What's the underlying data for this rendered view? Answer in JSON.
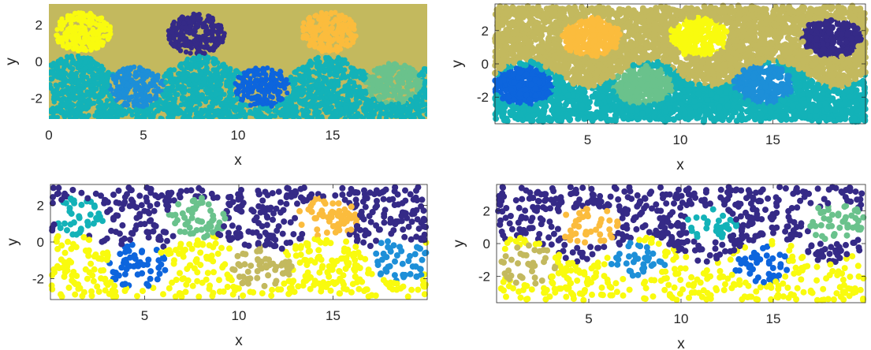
{
  "palette": {
    "navy": "#352a87",
    "yellow": "#f9fb0e",
    "gold": "#fbbc3d",
    "olive": "#c3b95e",
    "teal": "#13b2b8",
    "green": "#6ac28c",
    "sky": "#1d8fd8",
    "blue": "#0d65dd",
    "axis": "#262626"
  },
  "chart_data": [
    {
      "type": "scatter",
      "id": "top-left",
      "title": "",
      "xlabel": "x",
      "ylabel": "y",
      "xlim": [
        0,
        20
      ],
      "ylim": [
        -3.14,
        3.14
      ],
      "xticks": [
        0,
        5,
        10,
        15
      ],
      "xtick_labels": [
        "0",
        "5",
        "10",
        "15"
      ],
      "yticks": [
        2,
        0,
        -2
      ],
      "ytick_labels": [
        "2",
        "0",
        "-2"
      ],
      "box": false,
      "style": "dense-field",
      "regions": [
        {
          "kind": "background",
          "color": "#c3b95e"
        },
        {
          "kind": "band",
          "color": "#13b2b8",
          "base": -0.4,
          "amp": 0.75,
          "phase": 0.2
        },
        {
          "kind": "blob",
          "color": "#f9fb0e",
          "cx": 1.8,
          "cy": 1.6,
          "r": 1.5
        },
        {
          "kind": "blob",
          "color": "#352a87",
          "cx": 7.8,
          "cy": 1.5,
          "r": 1.5
        },
        {
          "kind": "blob",
          "color": "#fbbc3d",
          "cx": 14.8,
          "cy": 1.6,
          "r": 1.5
        },
        {
          "kind": "blob",
          "color": "#1d8fd8",
          "cx": 4.6,
          "cy": -1.4,
          "r": 1.5
        },
        {
          "kind": "blob",
          "color": "#0d65dd",
          "cx": 11.3,
          "cy": -1.4,
          "r": 1.5
        },
        {
          "kind": "blob",
          "color": "#6ac28c",
          "cx": 18.2,
          "cy": -1.2,
          "r": 1.5
        }
      ]
    },
    {
      "type": "scatter",
      "id": "top-right",
      "title": "",
      "xlabel": "x",
      "ylabel": "y",
      "xlim": [
        0,
        20
      ],
      "ylim": [
        -3.6,
        3.6
      ],
      "xticks": [
        5,
        10,
        15
      ],
      "xtick_labels": [
        "5",
        "10",
        "15"
      ],
      "yticks": [
        2,
        0,
        -2
      ],
      "ytick_labels": [
        "2",
        "0",
        "-2"
      ],
      "box": true,
      "style": "dense-points",
      "regions": [
        {
          "kind": "background",
          "color": "#c3b95e"
        },
        {
          "kind": "band",
          "color": "#13b2b8",
          "base": -0.6,
          "amp": 0.8,
          "phase": 0.0
        },
        {
          "kind": "blob",
          "color": "#fbbc3d",
          "cx": 5.2,
          "cy": 1.6,
          "r": 1.6
        },
        {
          "kind": "blob",
          "color": "#f9fb0e",
          "cx": 11.0,
          "cy": 1.6,
          "r": 1.6
        },
        {
          "kind": "blob",
          "color": "#352a87",
          "cx": 18.2,
          "cy": 1.6,
          "r": 1.6
        },
        {
          "kind": "blob",
          "color": "#0d65dd",
          "cx": 1.5,
          "cy": -1.3,
          "r": 1.6
        },
        {
          "kind": "blob",
          "color": "#6ac28c",
          "cx": 8.0,
          "cy": -1.3,
          "r": 1.6
        },
        {
          "kind": "blob",
          "color": "#1d8fd8",
          "cx": 14.5,
          "cy": -1.2,
          "r": 1.6
        }
      ]
    },
    {
      "type": "scatter",
      "id": "bottom-left",
      "title": "",
      "xlabel": "x",
      "ylabel": "y",
      "xlim": [
        0,
        20
      ],
      "ylim": [
        -3.14,
        3.14
      ],
      "xticks": [
        5,
        10,
        15
      ],
      "xtick_labels": [
        "5",
        "10",
        "15"
      ],
      "yticks": [
        2,
        0,
        -2
      ],
      "ytick_labels": [
        "2",
        "0",
        "-2"
      ],
      "box": true,
      "style": "sparse-points",
      "regions": [
        {
          "kind": "background",
          "color": "#352a87"
        },
        {
          "kind": "band",
          "color": "#f9fb0e",
          "base": -0.2,
          "amp": 0.8,
          "phase": 0.5
        },
        {
          "kind": "blob",
          "color": "#13b2b8",
          "cx": 1.5,
          "cy": 1.4,
          "r": 1.4
        },
        {
          "kind": "blob",
          "color": "#6ac28c",
          "cx": 7.7,
          "cy": 1.3,
          "r": 1.6
        },
        {
          "kind": "blob",
          "color": "#fbbc3d",
          "cx": 14.7,
          "cy": 1.3,
          "r": 1.6
        },
        {
          "kind": "blob",
          "color": "#0d65dd",
          "cx": 4.6,
          "cy": -1.3,
          "r": 1.6
        },
        {
          "kind": "blob",
          "color": "#c3b95e",
          "cx": 11.2,
          "cy": -1.4,
          "r": 1.6
        },
        {
          "kind": "blob",
          "color": "#1d8fd8",
          "cx": 18.5,
          "cy": -1.0,
          "r": 1.6
        }
      ]
    },
    {
      "type": "scatter",
      "id": "bottom-right",
      "title": "",
      "xlabel": "x",
      "ylabel": "y",
      "xlim": [
        0,
        20
      ],
      "ylim": [
        -3.6,
        3.6
      ],
      "xticks": [
        5,
        10,
        15
      ],
      "xtick_labels": [
        "5",
        "10",
        "15"
      ],
      "yticks": [
        2,
        0,
        -2
      ],
      "ytick_labels": [
        "2",
        "0",
        "-2"
      ],
      "box": true,
      "style": "sparse-points",
      "regions": [
        {
          "kind": "background",
          "color": "#352a87"
        },
        {
          "kind": "band",
          "color": "#f9fb0e",
          "base": -0.4,
          "amp": 0.8,
          "phase": 0.3
        },
        {
          "kind": "blob",
          "color": "#fbbc3d",
          "cx": 5.0,
          "cy": 1.1,
          "r": 1.6
        },
        {
          "kind": "blob",
          "color": "#13b2b8",
          "cx": 11.6,
          "cy": 1.1,
          "r": 1.4
        },
        {
          "kind": "blob",
          "color": "#6ac28c",
          "cx": 18.5,
          "cy": 1.3,
          "r": 1.6
        },
        {
          "kind": "blob",
          "color": "#c3b95e",
          "cx": 1.7,
          "cy": -1.3,
          "r": 1.6
        },
        {
          "kind": "blob",
          "color": "#1d8fd8",
          "cx": 7.6,
          "cy": -1.1,
          "r": 1.6
        },
        {
          "kind": "blob",
          "color": "#0d65dd",
          "cx": 14.3,
          "cy": -1.3,
          "r": 1.6
        }
      ]
    }
  ]
}
